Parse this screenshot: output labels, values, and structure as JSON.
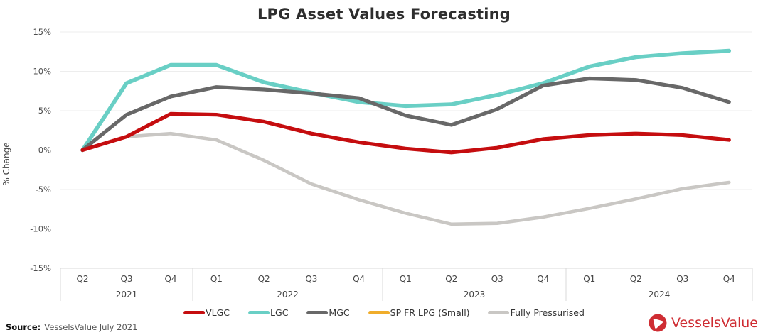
{
  "chart_data": {
    "type": "line",
    "title": "LPG Asset Values Forecasting",
    "xlabel": "",
    "ylabel": "% Change",
    "ylim": [
      -15,
      15
    ],
    "y_tick_labels": [
      "15%",
      "10%",
      "5%",
      "0%",
      "-5%",
      "-10%",
      "-15%"
    ],
    "y_tick_values": [
      15,
      10,
      5,
      0,
      -5,
      -10,
      -15
    ],
    "grid": "horizontal",
    "legend_position": "bottom",
    "x_groups": [
      {
        "year": "2021",
        "quarters": [
          "Q2",
          "Q3",
          "Q4"
        ]
      },
      {
        "year": "2022",
        "quarters": [
          "Q1",
          "Q2",
          "Q3",
          "Q4"
        ]
      },
      {
        "year": "2023",
        "quarters": [
          "Q1",
          "Q2",
          "Q3",
          "Q4"
        ]
      },
      {
        "year": "2024",
        "quarters": [
          "Q1",
          "Q2",
          "Q3",
          "Q4"
        ]
      }
    ],
    "categories": [
      "Q2 2021",
      "Q3 2021",
      "Q4 2021",
      "Q1 2022",
      "Q2 2022",
      "Q3 2022",
      "Q4 2022",
      "Q1 2023",
      "Q2 2023",
      "Q3 2023",
      "Q4 2023",
      "Q1 2024",
      "Q2 2024",
      "Q3 2024",
      "Q4 2024"
    ],
    "series": [
      {
        "name": "VLGC",
        "color": "#c50d0f",
        "values": [
          0,
          1.7,
          4.6,
          4.5,
          3.6,
          2.1,
          1.0,
          0.2,
          -0.3,
          0.3,
          1.4,
          1.9,
          2.1,
          1.9,
          1.3
        ]
      },
      {
        "name": "LGC",
        "color": "#69cfc5",
        "values": [
          0,
          8.5,
          10.8,
          10.8,
          8.6,
          7.3,
          6.1,
          5.6,
          5.8,
          7.0,
          8.5,
          10.6,
          11.8,
          12.3,
          12.6
        ]
      },
      {
        "name": "MGC",
        "color": "#686868",
        "values": [
          0,
          4.5,
          6.8,
          8.0,
          7.7,
          7.2,
          6.6,
          4.4,
          3.2,
          5.2,
          8.2,
          9.1,
          8.9,
          7.9,
          6.1
        ]
      },
      {
        "name": "SP FR LPG (Small)",
        "color": "#f0ad2b",
        "values": [
          0,
          1.7,
          2.1,
          1.3,
          -1.3,
          -4.3,
          -6.3,
          -8.0,
          -9.4,
          -9.3,
          -8.5,
          -7.4,
          -6.2,
          -4.9,
          -4.1
        ],
        "note": "line not separately visible; coincides with / hidden behind Fully Pressurised"
      },
      {
        "name": "Fully Pressurised",
        "color": "#c9c7c4",
        "values": [
          0,
          1.7,
          2.1,
          1.3,
          -1.3,
          -4.3,
          -6.3,
          -8.0,
          -9.4,
          -9.3,
          -8.5,
          -7.4,
          -6.2,
          -4.9,
          -4.1
        ]
      }
    ]
  },
  "footer": {
    "source_label": "Source:",
    "source_text": "VesselsValue July 2021",
    "logo_text": "VesselsValue",
    "logo_color": "#cf2d33"
  }
}
